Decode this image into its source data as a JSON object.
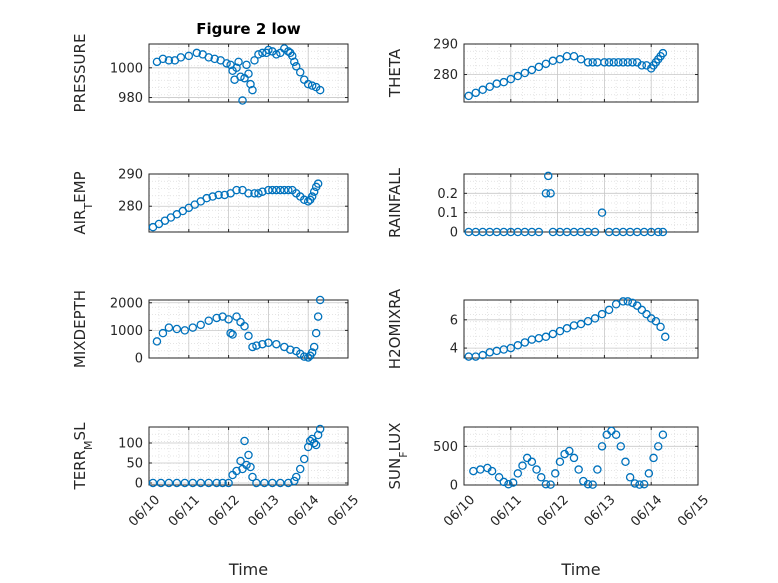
{
  "figure_title": "Figure 2 low",
  "colors": {
    "marker": "#0072BD",
    "grid": "#c8c8c8",
    "axis": "#262626"
  },
  "chart_data": [
    {
      "type": "scatter",
      "id": "pressure",
      "title": "Figure 2 low",
      "ylabel": "PRESSURE",
      "ylabel_parts": [
        [
          "PRESSURE",
          ""
        ]
      ],
      "xlabel": "",
      "xlim": [
        10,
        15
      ],
      "ylim": [
        977,
        1016
      ],
      "yticks": [
        980,
        1000
      ],
      "xticks": [
        10,
        11,
        12,
        13,
        14,
        15
      ],
      "xticklabels": [],
      "grid": true,
      "x": [
        10.2,
        10.35,
        10.5,
        10.65,
        10.8,
        11.0,
        11.2,
        11.35,
        11.5,
        11.65,
        11.8,
        11.95,
        12.05,
        12.1,
        12.15,
        12.2,
        12.25,
        12.3,
        12.35,
        12.4,
        12.45,
        12.5,
        12.55,
        12.6,
        12.65,
        12.75,
        12.85,
        12.95,
        13.0,
        13.1,
        13.2,
        13.3,
        13.4,
        13.5,
        13.55,
        13.6,
        13.65,
        13.7,
        13.8,
        13.9,
        14.0,
        14.1,
        14.2,
        14.3
      ],
      "y": [
        1004,
        1006,
        1005,
        1005,
        1007,
        1008,
        1010,
        1009,
        1007,
        1006,
        1005,
        1003,
        1002,
        998,
        992,
        1000,
        1004,
        994,
        978,
        993,
        1002,
        996,
        989,
        985,
        1005,
        1009,
        1010,
        1010,
        1012,
        1011,
        1009,
        1010,
        1013,
        1011,
        1010,
        1008,
        1004,
        1001,
        997,
        992,
        989,
        988,
        987,
        985
      ]
    },
    {
      "type": "scatter",
      "id": "theta",
      "ylabel": "THETA",
      "ylabel_parts": [
        [
          "THETA",
          ""
        ]
      ],
      "xlabel": "",
      "xlim": [
        10,
        15
      ],
      "ylim": [
        271,
        290
      ],
      "yticks": [
        270,
        280,
        290
      ],
      "xticks": [
        10,
        11,
        12,
        13,
        14,
        15
      ],
      "xticklabels": [],
      "grid": true,
      "x": [
        10.1,
        10.25,
        10.4,
        10.55,
        10.7,
        10.85,
        11.0,
        11.15,
        11.3,
        11.45,
        11.6,
        11.75,
        11.9,
        12.05,
        12.2,
        12.35,
        12.5,
        12.65,
        12.75,
        12.85,
        13.0,
        13.1,
        13.2,
        13.3,
        13.4,
        13.5,
        13.6,
        13.7,
        13.8,
        13.9,
        14.0,
        14.05,
        14.1,
        14.15,
        14.2,
        14.25
      ],
      "y": [
        273,
        274,
        275,
        276,
        277,
        277.5,
        278.5,
        279.5,
        280.5,
        281.5,
        282.5,
        283.5,
        284.5,
        285,
        286,
        286,
        285,
        284,
        284,
        284,
        284,
        284,
        284,
        284,
        284,
        284,
        284,
        284,
        283,
        283,
        282,
        283,
        284,
        285,
        286,
        287
      ]
    },
    {
      "type": "scatter",
      "id": "air_temp",
      "ylabel": "AIR_TEMP",
      "ylabel_parts": [
        [
          "AIR",
          ""
        ],
        [
          "T",
          "sub"
        ],
        [
          "EMP",
          ""
        ]
      ],
      "xlabel": "",
      "xlim": [
        10,
        15
      ],
      "ylim": [
        272,
        290
      ],
      "yticks": [
        270,
        280,
        290
      ],
      "xticks": [
        10,
        11,
        12,
        13,
        14,
        15
      ],
      "xticklabels": [],
      "grid": true,
      "x": [
        10.1,
        10.25,
        10.4,
        10.55,
        10.7,
        10.85,
        11.0,
        11.15,
        11.3,
        11.45,
        11.6,
        11.75,
        11.9,
        12.05,
        12.2,
        12.35,
        12.5,
        12.65,
        12.75,
        12.85,
        13.0,
        13.1,
        13.2,
        13.3,
        13.4,
        13.5,
        13.6,
        13.7,
        13.8,
        13.9,
        14.0,
        14.05,
        14.1,
        14.15,
        14.2,
        14.25
      ],
      "y": [
        273.5,
        274.5,
        275.5,
        276.5,
        277.5,
        278.5,
        279.5,
        280.5,
        281.5,
        282.5,
        283,
        283.5,
        283.5,
        284,
        285,
        285,
        284,
        284,
        284,
        284.5,
        285,
        285,
        285,
        285,
        285,
        285,
        285,
        284,
        283,
        282,
        281.5,
        282,
        283,
        284.5,
        286,
        287
      ]
    },
    {
      "type": "scatter",
      "id": "rainfall",
      "ylabel": "RAINFALL",
      "ylabel_parts": [
        [
          "RAINFALL",
          ""
        ]
      ],
      "xlabel": "",
      "xlim": [
        10,
        15
      ],
      "ylim": [
        0,
        0.3
      ],
      "yticks": [
        0,
        0.1,
        0.2
      ],
      "xticks": [
        10,
        11,
        12,
        13,
        14,
        15
      ],
      "xticklabels": [],
      "grid": true,
      "x": [
        10.1,
        10.25,
        10.4,
        10.55,
        10.7,
        10.85,
        11.0,
        11.15,
        11.3,
        11.45,
        11.6,
        11.75,
        11.8,
        11.85,
        11.9,
        12.05,
        12.2,
        12.35,
        12.5,
        12.65,
        12.8,
        12.95,
        13.1,
        13.25,
        13.4,
        13.55,
        13.7,
        13.85,
        14.0,
        14.15,
        14.25
      ],
      "y": [
        0,
        0,
        0,
        0,
        0,
        0,
        0,
        0,
        0,
        0,
        0,
        0.2,
        0.29,
        0.2,
        0,
        0,
        0,
        0,
        0,
        0,
        0,
        0.1,
        0,
        0,
        0,
        0,
        0,
        0,
        0,
        0,
        0
      ]
    },
    {
      "type": "scatter",
      "id": "mixdepth",
      "ylabel": "MIXDEPTH",
      "ylabel_parts": [
        [
          "MIXDEPTH",
          ""
        ]
      ],
      "xlabel": "",
      "xlim": [
        10,
        15
      ],
      "ylim": [
        0,
        2100
      ],
      "yticks": [
        0,
        1000,
        2000
      ],
      "xticks": [
        10,
        11,
        12,
        13,
        14,
        15
      ],
      "xticklabels": [],
      "grid": true,
      "x": [
        10.2,
        10.35,
        10.5,
        10.7,
        10.9,
        11.1,
        11.3,
        11.5,
        11.7,
        11.85,
        12.0,
        12.05,
        12.1,
        12.2,
        12.3,
        12.4,
        12.5,
        12.6,
        12.7,
        12.85,
        13.0,
        13.2,
        13.4,
        13.55,
        13.7,
        13.8,
        13.9,
        14.0,
        14.05,
        14.1,
        14.15,
        14.2,
        14.25,
        14.3
      ],
      "y": [
        600,
        900,
        1100,
        1050,
        1000,
        1100,
        1200,
        1350,
        1450,
        1500,
        1400,
        900,
        850,
        1500,
        1300,
        1150,
        800,
        400,
        450,
        500,
        550,
        500,
        400,
        300,
        250,
        150,
        50,
        20,
        80,
        200,
        400,
        900,
        1500,
        2100
      ]
    },
    {
      "type": "scatter",
      "id": "h2omixra",
      "ylabel": "H2OMIXRA",
      "ylabel_parts": [
        [
          "H2OMIXRA",
          ""
        ]
      ],
      "xlabel": "",
      "xlim": [
        10,
        15
      ],
      "ylim": [
        3.3,
        7.4
      ],
      "yticks": [
        4,
        6
      ],
      "xticks": [
        10,
        11,
        12,
        13,
        14,
        15
      ],
      "xticklabels": [],
      "grid": true,
      "x": [
        10.1,
        10.25,
        10.4,
        10.55,
        10.7,
        10.85,
        11.0,
        11.15,
        11.3,
        11.45,
        11.6,
        11.75,
        11.9,
        12.05,
        12.2,
        12.35,
        12.5,
        12.65,
        12.8,
        12.95,
        13.1,
        13.25,
        13.4,
        13.5,
        13.6,
        13.7,
        13.8,
        13.9,
        14.0,
        14.1,
        14.2,
        14.3
      ],
      "y": [
        3.4,
        3.4,
        3.5,
        3.7,
        3.8,
        3.9,
        4.0,
        4.2,
        4.4,
        4.6,
        4.7,
        4.8,
        5.0,
        5.2,
        5.4,
        5.6,
        5.7,
        5.9,
        6.1,
        6.4,
        6.7,
        7.1,
        7.3,
        7.3,
        7.2,
        7.0,
        6.7,
        6.4,
        6.1,
        5.9,
        5.5,
        4.8
      ]
    },
    {
      "type": "scatter",
      "id": "terr_msl",
      "ylabel": "TERR_MSL",
      "ylabel_parts": [
        [
          "TERR",
          ""
        ],
        [
          "M",
          "sub"
        ],
        [
          "SL",
          ""
        ]
      ],
      "xlabel": "Time",
      "xlim": [
        10,
        15
      ],
      "ylim": [
        -5,
        140
      ],
      "yticks": [
        0,
        50,
        100
      ],
      "xticks": [
        10,
        11,
        12,
        13,
        14,
        15
      ],
      "xticklabels": [
        "06/10",
        "06/11",
        "06/12",
        "06/13",
        "06/14",
        "06/15"
      ],
      "grid": true,
      "x": [
        10.1,
        10.3,
        10.5,
        10.7,
        10.9,
        11.1,
        11.3,
        11.5,
        11.7,
        11.85,
        12.0,
        12.1,
        12.2,
        12.3,
        12.35,
        12.4,
        12.45,
        12.5,
        12.55,
        12.6,
        12.7,
        12.9,
        13.1,
        13.3,
        13.5,
        13.65,
        13.7,
        13.8,
        13.9,
        14.0,
        14.05,
        14.1,
        14.15,
        14.2,
        14.25,
        14.3
      ],
      "y": [
        0,
        0,
        0,
        0,
        0,
        0,
        0,
        0,
        0,
        0,
        0,
        20,
        30,
        55,
        35,
        105,
        45,
        70,
        40,
        15,
        0,
        0,
        0,
        0,
        0,
        5,
        15,
        35,
        60,
        90,
        105,
        110,
        100,
        95,
        120,
        135
      ]
    },
    {
      "type": "scatter",
      "id": "sun_flux",
      "ylabel": "SUN_FLUX",
      "ylabel_parts": [
        [
          "SUN",
          ""
        ],
        [
          "F",
          "sub"
        ],
        [
          "LUX",
          ""
        ]
      ],
      "xlabel": "Time",
      "xlim": [
        10,
        15
      ],
      "ylim": [
        0,
        750
      ],
      "yticks": [
        0,
        500
      ],
      "xticks": [
        10,
        11,
        12,
        13,
        14,
        15
      ],
      "xticklabels": [
        "06/10",
        "06/11",
        "06/12",
        "06/13",
        "06/14",
        "06/15"
      ],
      "grid": true,
      "x": [
        10.2,
        10.35,
        10.5,
        10.6,
        10.75,
        10.85,
        10.95,
        11.05,
        11.15,
        11.25,
        11.35,
        11.45,
        11.55,
        11.65,
        11.75,
        11.85,
        11.95,
        12.05,
        12.15,
        12.25,
        12.35,
        12.45,
        12.55,
        12.65,
        12.75,
        12.85,
        12.95,
        13.05,
        13.15,
        13.25,
        13.35,
        13.45,
        13.55,
        13.65,
        13.75,
        13.85,
        13.95,
        14.05,
        14.15,
        14.25
      ],
      "y": [
        180,
        200,
        220,
        180,
        100,
        40,
        10,
        30,
        150,
        250,
        350,
        300,
        200,
        100,
        10,
        5,
        150,
        300,
        400,
        440,
        350,
        200,
        50,
        10,
        5,
        200,
        500,
        650,
        700,
        650,
        500,
        300,
        100,
        20,
        5,
        10,
        150,
        350,
        500,
        650
      ]
    }
  ]
}
